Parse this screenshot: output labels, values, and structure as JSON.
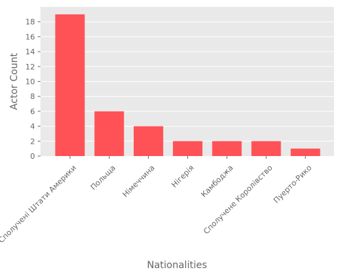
{
  "chart_data": {
    "type": "bar",
    "categories": [
      "Сполучені Штати Америки",
      "Польща",
      "Німеччина",
      "Нігерія",
      "Камбоджа",
      "Сполучене Королівство",
      "Пуерто-Рико"
    ],
    "values": [
      19,
      6,
      4,
      2,
      2,
      2,
      1
    ],
    "xlabel": "Nationalities",
    "ylabel": "Actor Count",
    "ylim": [
      0,
      20
    ],
    "yticks": [
      0,
      2,
      4,
      6,
      8,
      10,
      12,
      14,
      16,
      18
    ],
    "grid": true,
    "colors": {
      "bar": "#ff5257",
      "plot_background": "#e9e9e9",
      "grid": "#ffffff",
      "text": "#666666"
    }
  }
}
